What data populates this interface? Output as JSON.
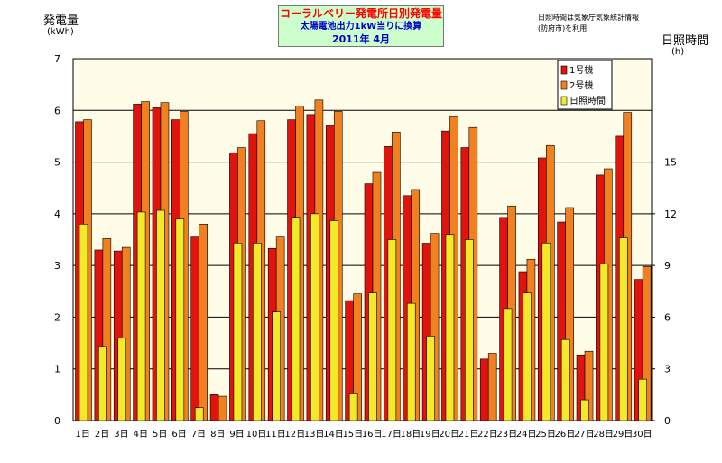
{
  "title": {
    "main": "コーラルベリー発電所日別発電量",
    "sub": "太陽電池出力1kW当りに換算",
    "date": "2011年 4月"
  },
  "note": {
    "line1": "日照時間は気象庁気象統計情報",
    "line2": "(防府市)を利用"
  },
  "colors": {
    "unit1": "#e0140c",
    "unit2": "#f08020",
    "sunshine": "#f2ea28",
    "plot_bg": "#fffde8"
  },
  "chart_data": {
    "type": "bar",
    "y_left": {
      "label": "発電量",
      "unit": "(kWh)",
      "lim": [
        0,
        7
      ],
      "ticks": [
        0,
        1,
        2,
        3,
        4,
        5,
        6,
        7
      ]
    },
    "y_right": {
      "label": "日照時間",
      "unit": "(h)",
      "lim": [
        0,
        21
      ],
      "ticks": [
        0,
        3,
        6,
        9,
        12,
        15
      ]
    },
    "grid": true,
    "legend_position": "top-right",
    "categories": [
      "1日",
      "2日",
      "3日",
      "4日",
      "5日",
      "6日",
      "7日",
      "8日",
      "9日",
      "10日",
      "11日",
      "12日",
      "13日",
      "14日",
      "15日",
      "16日",
      "17日",
      "18日",
      "19日",
      "20日",
      "21日",
      "22日",
      "23日",
      "24日",
      "25日",
      "26日",
      "27日",
      "28日",
      "29日",
      "30日"
    ],
    "series": [
      {
        "name": "1号機",
        "axis": "left",
        "values": [
          5.78,
          3.3,
          3.28,
          6.12,
          6.05,
          5.82,
          3.55,
          0.5,
          5.18,
          5.55,
          3.33,
          5.82,
          5.92,
          5.7,
          2.32,
          4.58,
          5.3,
          4.35,
          3.43,
          5.6,
          5.28,
          1.19,
          3.93,
          2.88,
          5.08,
          3.84,
          1.27,
          4.75,
          5.5,
          2.73
        ]
      },
      {
        "name": "2号機",
        "axis": "left",
        "values": [
          5.82,
          3.52,
          3.35,
          6.17,
          6.15,
          5.98,
          3.8,
          0.47,
          5.28,
          5.8,
          3.55,
          6.08,
          6.2,
          5.98,
          2.45,
          4.8,
          5.58,
          4.47,
          3.62,
          5.88,
          5.67,
          1.3,
          4.15,
          3.12,
          5.32,
          4.12,
          1.34,
          4.87,
          5.96,
          2.98
        ]
      },
      {
        "name": "日照時間",
        "axis": "right",
        "values": [
          11.4,
          4.3,
          4.8,
          12.1,
          12.2,
          11.7,
          0.75,
          0.0,
          10.3,
          10.3,
          6.3,
          11.8,
          12.0,
          11.6,
          1.6,
          7.4,
          10.5,
          6.8,
          4.9,
          10.8,
          10.5,
          0.0,
          6.5,
          7.4,
          10.3,
          4.7,
          1.2,
          9.1,
          10.6,
          2.4
        ]
      }
    ]
  }
}
